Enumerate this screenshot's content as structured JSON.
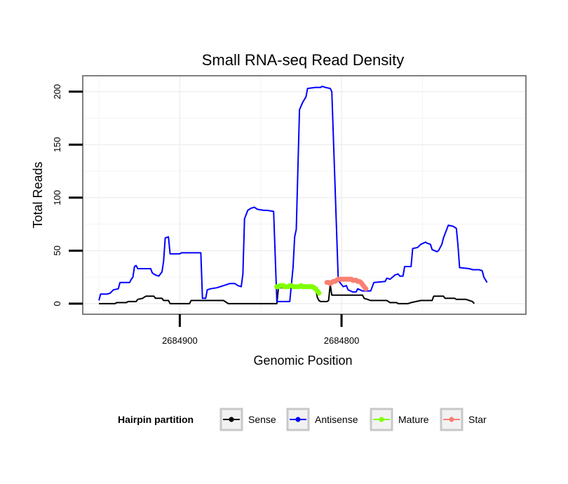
{
  "chart_data": {
    "type": "line",
    "title": "Small RNA-seq Read Density",
    "xlabel": "Genomic Position",
    "ylabel": "Total Reads",
    "x_reversed": true,
    "xlim": [
      2684960,
      2684686
    ],
    "ylim": [
      -10,
      215
    ],
    "xticks": [
      2684900,
      2684800
    ],
    "xtick_labels": [
      "2684900",
      "2684800"
    ],
    "yticks": [
      0,
      50,
      100,
      150,
      200
    ],
    "ytick_labels": [
      "0",
      "50",
      "100",
      "150",
      "200"
    ],
    "legend": {
      "title": "Hairpin partition",
      "position": "bottom",
      "entries": [
        {
          "label": "Sense",
          "color": "#000000"
        },
        {
          "label": "Antisense",
          "color": "#0000ff"
        },
        {
          "label": "Mature",
          "color": "#7fff00"
        },
        {
          "label": "Star",
          "color": "#fa8072"
        }
      ]
    },
    "series": [
      {
        "name": "Sense",
        "color": "#000000",
        "style": "line",
        "points": [
          [
            2684950,
            0
          ],
          [
            2684940,
            0
          ],
          [
            2684939,
            1
          ],
          [
            2684933,
            1
          ],
          [
            2684932,
            2
          ],
          [
            2684927,
            2
          ],
          [
            2684926,
            4
          ],
          [
            2684923,
            5
          ],
          [
            2684922,
            6
          ],
          [
            2684921,
            7
          ],
          [
            2684916,
            7
          ],
          [
            2684915,
            5
          ],
          [
            2684911,
            5
          ],
          [
            2684910,
            3
          ],
          [
            2684907,
            3
          ],
          [
            2684906,
            0
          ],
          [
            2684894,
            0
          ],
          [
            2684893,
            3
          ],
          [
            2684873,
            3
          ],
          [
            2684872,
            2
          ],
          [
            2684870,
            0
          ],
          [
            2684840,
            0
          ],
          [
            2684839,
            15
          ],
          [
            2684816,
            15
          ],
          [
            2684815,
            6
          ],
          [
            2684814,
            3
          ],
          [
            2684813,
            2
          ],
          [
            2684809,
            2
          ],
          [
            2684808,
            3
          ],
          [
            2684807,
            18
          ],
          [
            2684806,
            8
          ],
          [
            2684787,
            8
          ],
          [
            2684786,
            5
          ],
          [
            2684784,
            4
          ],
          [
            2684782,
            3
          ],
          [
            2684772,
            3
          ],
          [
            2684770,
            1
          ],
          [
            2684766,
            1
          ],
          [
            2684765,
            0
          ],
          [
            2684759,
            0
          ],
          [
            2684757,
            1
          ],
          [
            2684754,
            2
          ],
          [
            2684751,
            3
          ],
          [
            2684744,
            3
          ],
          [
            2684743,
            7
          ],
          [
            2684737,
            7
          ],
          [
            2684736,
            5
          ],
          [
            2684730,
            5
          ],
          [
            2684729,
            4
          ],
          [
            2684723,
            4
          ],
          [
            2684721,
            3
          ],
          [
            2684719,
            2
          ],
          [
            2684718,
            0
          ]
        ]
      },
      {
        "name": "Antisense",
        "color": "#0000ff",
        "style": "line",
        "points": [
          [
            2684950,
            3
          ],
          [
            2684949,
            9
          ],
          [
            2684945,
            9
          ],
          [
            2684943,
            10
          ],
          [
            2684941,
            13
          ],
          [
            2684938,
            14
          ],
          [
            2684937,
            20
          ],
          [
            2684931,
            20
          ],
          [
            2684930,
            23
          ],
          [
            2684929,
            25
          ],
          [
            2684928,
            35
          ],
          [
            2684927,
            36
          ],
          [
            2684926,
            33
          ],
          [
            2684918,
            33
          ],
          [
            2684917,
            29
          ],
          [
            2684915,
            27
          ],
          [
            2684913,
            26
          ],
          [
            2684911,
            30
          ],
          [
            2684910,
            40
          ],
          [
            2684909,
            62
          ],
          [
            2684907,
            63
          ],
          [
            2684906,
            47
          ],
          [
            2684900,
            47
          ],
          [
            2684899,
            48
          ],
          [
            2684887,
            48
          ],
          [
            2684886,
            5
          ],
          [
            2684884,
            5
          ],
          [
            2684883,
            13
          ],
          [
            2684881,
            14
          ],
          [
            2684877,
            15
          ],
          [
            2684873,
            17
          ],
          [
            2684871,
            18
          ],
          [
            2684869,
            19
          ],
          [
            2684866,
            19
          ],
          [
            2684864,
            17
          ],
          [
            2684862,
            16
          ],
          [
            2684861,
            28
          ],
          [
            2684860,
            80
          ],
          [
            2684858,
            88
          ],
          [
            2684856,
            90
          ],
          [
            2684854,
            91
          ],
          [
            2684852,
            89
          ],
          [
            2684848,
            88
          ],
          [
            2684846,
            88
          ],
          [
            2684842,
            87
          ],
          [
            2684840,
            2
          ],
          [
            2684832,
            2
          ],
          [
            2684830,
            34
          ],
          [
            2684829,
            63
          ],
          [
            2684828,
            70
          ],
          [
            2684826,
            183
          ],
          [
            2684824,
            190
          ],
          [
            2684822,
            195
          ],
          [
            2684821,
            203
          ],
          [
            2684816,
            204
          ],
          [
            2684813,
            204
          ],
          [
            2684812,
            205
          ],
          [
            2684810,
            204
          ],
          [
            2684807,
            203
          ],
          [
            2684806,
            200
          ],
          [
            2684802,
            22
          ],
          [
            2684799,
            16
          ],
          [
            2684797,
            17
          ],
          [
            2684796,
            13
          ],
          [
            2684793,
            11
          ],
          [
            2684791,
            11
          ],
          [
            2684790,
            14
          ],
          [
            2684787,
            12
          ],
          [
            2684782,
            12
          ],
          [
            2684780,
            20
          ],
          [
            2684773,
            21
          ],
          [
            2684772,
            24
          ],
          [
            2684770,
            23
          ],
          [
            2684767,
            27
          ],
          [
            2684765,
            28
          ],
          [
            2684764,
            26
          ],
          [
            2684762,
            26
          ],
          [
            2684761,
            35
          ],
          [
            2684757,
            35
          ],
          [
            2684756,
            52
          ],
          [
            2684753,
            53
          ],
          [
            2684751,
            56
          ],
          [
            2684748,
            58
          ],
          [
            2684747,
            57
          ],
          [
            2684745,
            56
          ],
          [
            2684744,
            51
          ],
          [
            2684741,
            49
          ],
          [
            2684740,
            50
          ],
          [
            2684738,
            56
          ],
          [
            2684737,
            62
          ],
          [
            2684736,
            66
          ],
          [
            2684734,
            74
          ],
          [
            2684731,
            73
          ],
          [
            2684729,
            71
          ],
          [
            2684728,
            55
          ],
          [
            2684727,
            34
          ],
          [
            2684721,
            33
          ],
          [
            2684719,
            32
          ],
          [
            2684715,
            32
          ],
          [
            2684713,
            31
          ],
          [
            2684712,
            25
          ],
          [
            2684710,
            20
          ]
        ]
      },
      {
        "name": "Mature",
        "color": "#7fff00",
        "style": "points",
        "points": [
          [
            2684840,
            16
          ],
          [
            2684839,
            16
          ],
          [
            2684838,
            17
          ],
          [
            2684837,
            17
          ],
          [
            2684836,
            17
          ],
          [
            2684835,
            16
          ],
          [
            2684834,
            16
          ],
          [
            2684833,
            16
          ],
          [
            2684832,
            17
          ],
          [
            2684831,
            17
          ],
          [
            2684830,
            16
          ],
          [
            2684829,
            16
          ],
          [
            2684828,
            16
          ],
          [
            2684827,
            16
          ],
          [
            2684826,
            16
          ],
          [
            2684825,
            17
          ],
          [
            2684824,
            16
          ],
          [
            2684823,
            16
          ],
          [
            2684822,
            16
          ],
          [
            2684821,
            16
          ],
          [
            2684820,
            16
          ],
          [
            2684819,
            16
          ],
          [
            2684818,
            16
          ],
          [
            2684817,
            15
          ],
          [
            2684816,
            14
          ],
          [
            2684815,
            12
          ],
          [
            2684814,
            10
          ]
        ]
      },
      {
        "name": "Star",
        "color": "#fa8072",
        "style": "points",
        "points": [
          [
            2684809,
            20
          ],
          [
            2684808,
            20
          ],
          [
            2684807,
            19
          ],
          [
            2684806,
            20
          ],
          [
            2684805,
            21
          ],
          [
            2684804,
            21
          ],
          [
            2684803,
            22
          ],
          [
            2684802,
            23
          ],
          [
            2684801,
            23
          ],
          [
            2684800,
            23
          ],
          [
            2684799,
            23
          ],
          [
            2684798,
            23
          ],
          [
            2684797,
            23
          ],
          [
            2684796,
            23
          ],
          [
            2684795,
            23
          ],
          [
            2684794,
            23
          ],
          [
            2684793,
            22
          ],
          [
            2684792,
            22
          ],
          [
            2684791,
            22
          ],
          [
            2684790,
            21
          ],
          [
            2684789,
            21
          ],
          [
            2684788,
            20
          ],
          [
            2684787,
            18
          ],
          [
            2684786,
            16
          ],
          [
            2684785,
            14
          ]
        ]
      }
    ]
  }
}
